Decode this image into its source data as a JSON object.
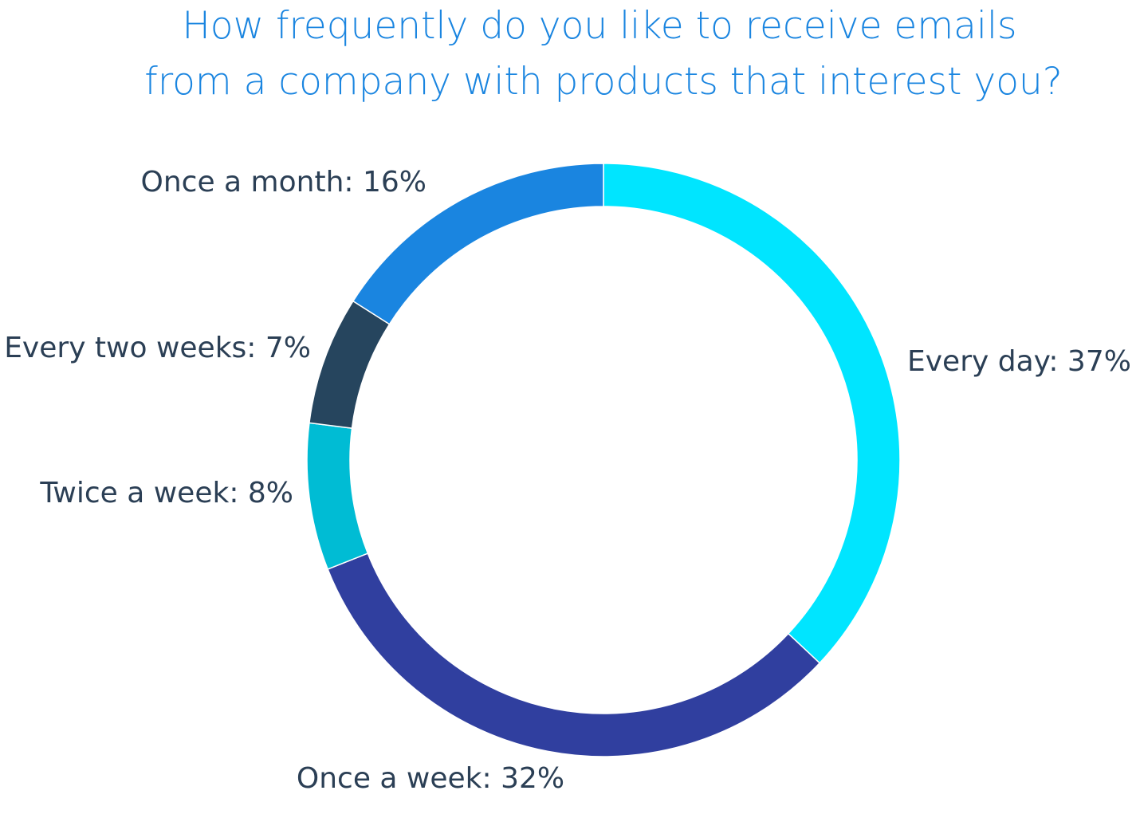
{
  "chart_data": {
    "type": "donut",
    "title": [
      "How frequently do you like to receive emails",
      "from a company with products that interest you?"
    ],
    "categories": [
      "Every day: 37%",
      "Once a week: 32%",
      "Twice a week: 8%",
      "Every two weeks: 7%",
      "Once a month: 16%"
    ],
    "values": [
      37,
      32,
      8,
      7,
      16
    ],
    "colors": [
      "#00e5ff",
      "#303f9f",
      "#00bcd4",
      "#26455e",
      "#1a85e0"
    ]
  }
}
